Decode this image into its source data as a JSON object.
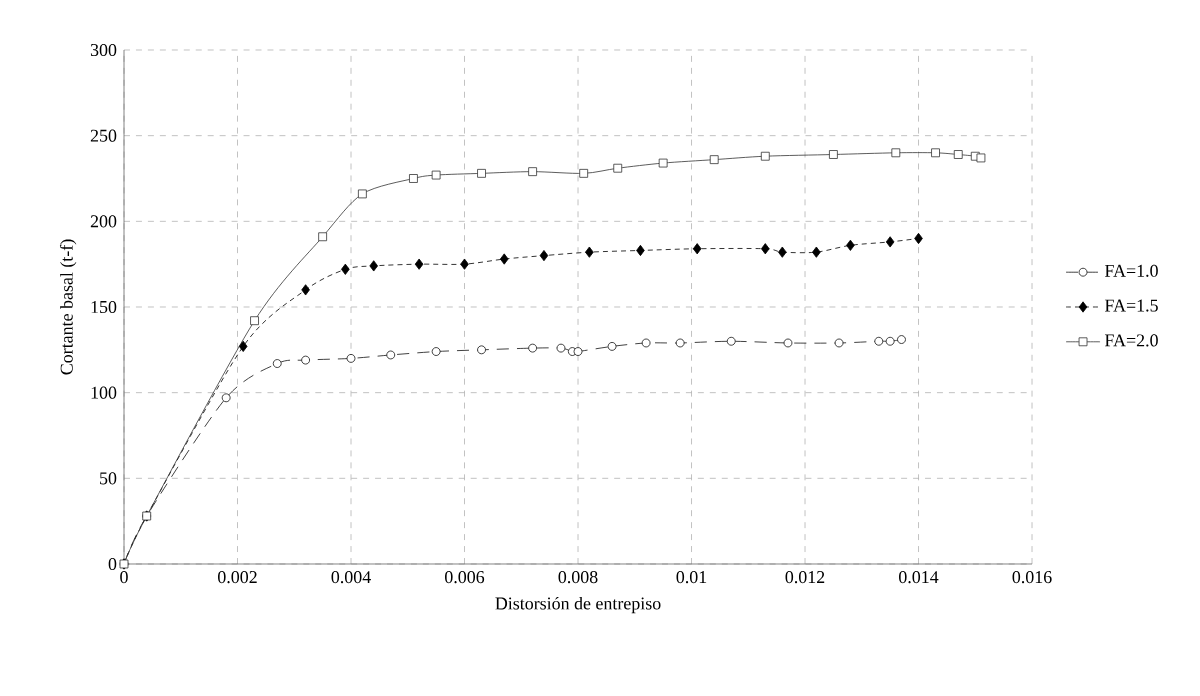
{
  "chart_data": {
    "type": "line",
    "xlabel": "Distorsión de entrepiso",
    "ylabel": "Cortante basal (t-f)",
    "xlim": [
      0,
      0.016
    ],
    "xticks": [
      0,
      0.002,
      0.004,
      0.006,
      0.008,
      0.01,
      0.012,
      0.014,
      0.016
    ],
    "ylim": [
      0,
      300
    ],
    "yticks": [
      0,
      50,
      100,
      150,
      200,
      250,
      300
    ],
    "grid": true,
    "legend": "right",
    "series": [
      {
        "name": "FA=1.0",
        "color": "#111111",
        "marker": "circle",
        "line_style": "dashed",
        "x": [
          0,
          0.0004,
          0.0018,
          0.0027,
          0.0032,
          0.004,
          0.0047,
          0.0055,
          0.0063,
          0.0072,
          0.0077,
          0.0079,
          0.008,
          0.0086,
          0.0092,
          0.0098,
          0.0107,
          0.0117,
          0.0126,
          0.0133,
          0.0135,
          0.0137
        ],
        "values": [
          0,
          28,
          97,
          117,
          119,
          120,
          122,
          124,
          125,
          126,
          126,
          124,
          124,
          127,
          129,
          129,
          130,
          129,
          129,
          130,
          130,
          131
        ]
      },
      {
        "name": "FA=1.5",
        "color": "#000000",
        "marker": "diamond",
        "line_style": "dotted",
        "x": [
          0,
          0.0004,
          0.0021,
          0.0032,
          0.0039,
          0.0044,
          0.0052,
          0.006,
          0.0067,
          0.0074,
          0.0082,
          0.0091,
          0.0101,
          0.0113,
          0.0116,
          0.0122,
          0.0128,
          0.0135,
          0.014
        ],
        "values": [
          0,
          28,
          127,
          160,
          172,
          174,
          175,
          175,
          178,
          180,
          182,
          183,
          184,
          184,
          182,
          182,
          186,
          188,
          190
        ]
      },
      {
        "name": "FA=2.0",
        "color": "#333333",
        "marker": "square",
        "line_style": "solid",
        "x": [
          0,
          0.0004,
          0.0023,
          0.0035,
          0.0042,
          0.0051,
          0.0055,
          0.0063,
          0.0072,
          0.0081,
          0.0087,
          0.0095,
          0.0104,
          0.0113,
          0.0125,
          0.0136,
          0.0143,
          0.0147,
          0.015,
          0.0151
        ],
        "values": [
          0,
          28,
          142,
          191,
          216,
          225,
          227,
          228,
          229,
          228,
          231,
          234,
          236,
          238,
          239,
          240,
          240,
          239,
          238,
          237
        ]
      }
    ]
  }
}
